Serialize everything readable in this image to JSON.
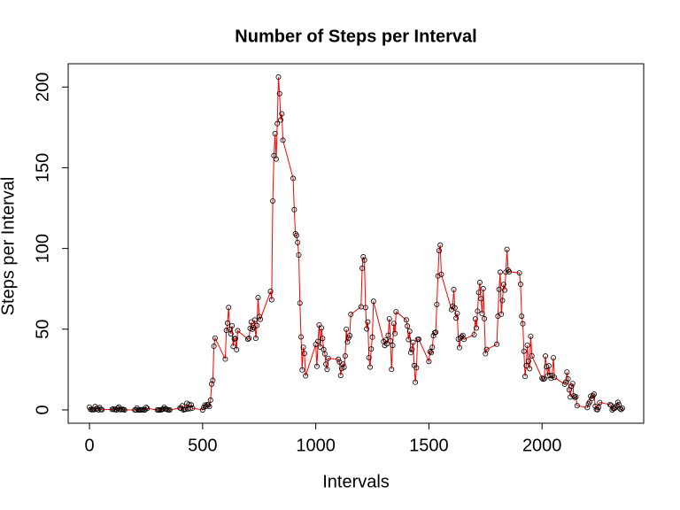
{
  "chart_data": {
    "type": "line",
    "title": "Number of Steps per Interval",
    "x_label": "Intervals",
    "y_label": "Steps per Interval",
    "x": [
      0,
      5,
      10,
      15,
      20,
      25,
      30,
      35,
      40,
      45,
      50,
      55,
      100,
      105,
      110,
      115,
      120,
      125,
      130,
      135,
      140,
      145,
      150,
      155,
      200,
      205,
      210,
      215,
      220,
      225,
      230,
      235,
      240,
      245,
      250,
      255,
      300,
      305,
      310,
      315,
      320,
      325,
      330,
      335,
      340,
      345,
      350,
      355,
      400,
      405,
      410,
      415,
      420,
      425,
      430,
      435,
      440,
      445,
      450,
      455,
      500,
      505,
      510,
      515,
      520,
      525,
      530,
      535,
      540,
      545,
      550,
      555,
      600,
      605,
      610,
      615,
      620,
      625,
      630,
      635,
      640,
      645,
      650,
      655,
      700,
      705,
      710,
      715,
      720,
      725,
      730,
      735,
      740,
      745,
      750,
      755,
      800,
      805,
      810,
      815,
      820,
      825,
      830,
      835,
      840,
      845,
      850,
      855,
      900,
      905,
      910,
      915,
      920,
      925,
      930,
      935,
      940,
      945,
      950,
      955,
      1000,
      1005,
      1010,
      1015,
      1020,
      1025,
      1030,
      1035,
      1040,
      1045,
      1050,
      1055,
      1100,
      1105,
      1110,
      1115,
      1120,
      1125,
      1130,
      1135,
      1140,
      1145,
      1150,
      1155,
      1200,
      1205,
      1210,
      1215,
      1220,
      1225,
      1230,
      1235,
      1240,
      1245,
      1250,
      1255,
      1300,
      1305,
      1310,
      1315,
      1320,
      1325,
      1330,
      1335,
      1340,
      1345,
      1350,
      1355,
      1400,
      1405,
      1410,
      1415,
      1420,
      1425,
      1430,
      1435,
      1440,
      1445,
      1450,
      1455,
      1500,
      1505,
      1510,
      1515,
      1520,
      1525,
      1530,
      1535,
      1540,
      1545,
      1550,
      1555,
      1600,
      1605,
      1610,
      1615,
      1620,
      1625,
      1630,
      1635,
      1640,
      1645,
      1650,
      1655,
      1700,
      1705,
      1710,
      1715,
      1720,
      1725,
      1730,
      1735,
      1740,
      1745,
      1750,
      1755,
      1800,
      1805,
      1810,
      1815,
      1820,
      1825,
      1830,
      1835,
      1840,
      1845,
      1850,
      1855,
      1900,
      1905,
      1910,
      1915,
      1920,
      1925,
      1930,
      1935,
      1940,
      1945,
      1950,
      1955,
      2000,
      2005,
      2010,
      2015,
      2020,
      2025,
      2030,
      2035,
      2040,
      2045,
      2050,
      2055,
      2100,
      2105,
      2110,
      2115,
      2120,
      2125,
      2130,
      2135,
      2140,
      2145,
      2150,
      2155,
      2200,
      2205,
      2210,
      2215,
      2220,
      2225,
      2230,
      2235,
      2240,
      2245,
      2250,
      2255,
      2300,
      2305,
      2310,
      2315,
      2320,
      2325,
      2330,
      2335,
      2340,
      2345,
      2350,
      2355
    ],
    "values": [
      1.72,
      0.34,
      0.13,
      0.15,
      0.08,
      2.09,
      0.53,
      0.87,
      0,
      1.47,
      0.3,
      0.13,
      0.32,
      0.68,
      0.15,
      0.34,
      0,
      1.11,
      1.83,
      0.17,
      0.17,
      0.38,
      0.26,
      0,
      0,
      0,
      1.13,
      0,
      0,
      0.13,
      0,
      0.23,
      0,
      0,
      1.55,
      0.94,
      0,
      0,
      0,
      0,
      0.21,
      0.62,
      1.62,
      0.58,
      0.49,
      0.08,
      0,
      0,
      1.19,
      0.94,
      2.57,
      0,
      0.34,
      0.36,
      4.11,
      0.66,
      3.49,
      0.83,
      3.11,
      1.11,
      0,
      1.57,
      3,
      2.25,
      3.32,
      2.96,
      2.09,
      6.06,
      16.02,
      18.34,
      39.45,
      44.49,
      31.49,
      49.26,
      53.77,
      63.45,
      49.96,
      47.08,
      52.15,
      39.34,
      44.02,
      44.17,
      37.36,
      49.04,
      43.81,
      44.38,
      50.51,
      54.51,
      49.92,
      50.98,
      55.68,
      44.32,
      52.26,
      69.55,
      57.85,
      56.15,
      73.38,
      68.21,
      129.43,
      157.53,
      171.15,
      155.4,
      177.3,
      206.17,
      195.92,
      179.57,
      183.4,
      167.02,
      143.45,
      124.04,
      109.11,
      108.11,
      103.72,
      95.96,
      66.21,
      45.23,
      24.79,
      38.75,
      34.98,
      21.06,
      40.57,
      26.98,
      42.42,
      52.66,
      38.92,
      50.79,
      44.28,
      37.42,
      34.7,
      28.34,
      25.09,
      31.94,
      31.36,
      29.68,
      21.32,
      25.55,
      28.38,
      26.47,
      33.43,
      49.98,
      42.04,
      44.6,
      46.04,
      59.19,
      63.87,
      87.7,
      94.85,
      92.77,
      63.4,
      50.17,
      54.47,
      32.42,
      26.53,
      37.74,
      45.06,
      67.28,
      42.34,
      39.89,
      43.26,
      40.98,
      46.25,
      56.43,
      42.75,
      25.13,
      39.96,
      53.55,
      47.32,
      60.81,
      55.75,
      51.96,
      43.58,
      48.7,
      35.47,
      37.55,
      41.85,
      27.51,
      17.11,
      26.08,
      43.62,
      43.77,
      30.02,
      36.08,
      35.49,
      38.85,
      45.96,
      47.75,
      48.13,
      65.32,
      82.91,
      98.66,
      102.11,
      83.96,
      62.13,
      64.13,
      74.55,
      63.17,
      56.91,
      59.77,
      43.87,
      38.57,
      44.66,
      45.45,
      46.21,
      43.68,
      46.62,
      56.3,
      50.72,
      61.23,
      72.72,
      78.94,
      68.94,
      59.66,
      75.09,
      56.51,
      34.77,
      37.45,
      40.68,
      58.02,
      74.7,
      85.32,
      59.26,
      67.77,
      77.7,
      74.25,
      85.34,
      99.45,
      86.58,
      85.6,
      84.87,
      77.83,
      58.04,
      53.36,
      36.32,
      20.72,
      27.4,
      40.02,
      30.21,
      25.55,
      45.66,
      33.53,
      19.62,
      19.02,
      19.34,
      33.34,
      26.81,
      21.17,
      27.3,
      21.34,
      19.55,
      21.32,
      32.3,
      20.15,
      15.94,
      17.23,
      23.45,
      19.25,
      12.45,
      8.02,
      14.66,
      16.3,
      8.68,
      7.79,
      8.13,
      2.62,
      1.45,
      3.68,
      4.81,
      8.51,
      7.08,
      8.7,
      9.75,
      2.21,
      0.32,
      0.11,
      1.6,
      4.6,
      3.3,
      2.85,
      0,
      0.83,
      0.96,
      1.58,
      2.6,
      4.7,
      3.3,
      0.64,
      0.23,
      1.08
    ],
    "line_color": "#ff0000",
    "marker_color": "#000000",
    "xlim": [
      -94.2,
      2449.2
    ],
    "xticks": [
      0,
      500,
      1000,
      1500,
      2000
    ],
    "ylim": [
      -8.25,
      214.42
    ],
    "yticks": [
      0,
      50,
      100,
      150,
      200
    ]
  }
}
